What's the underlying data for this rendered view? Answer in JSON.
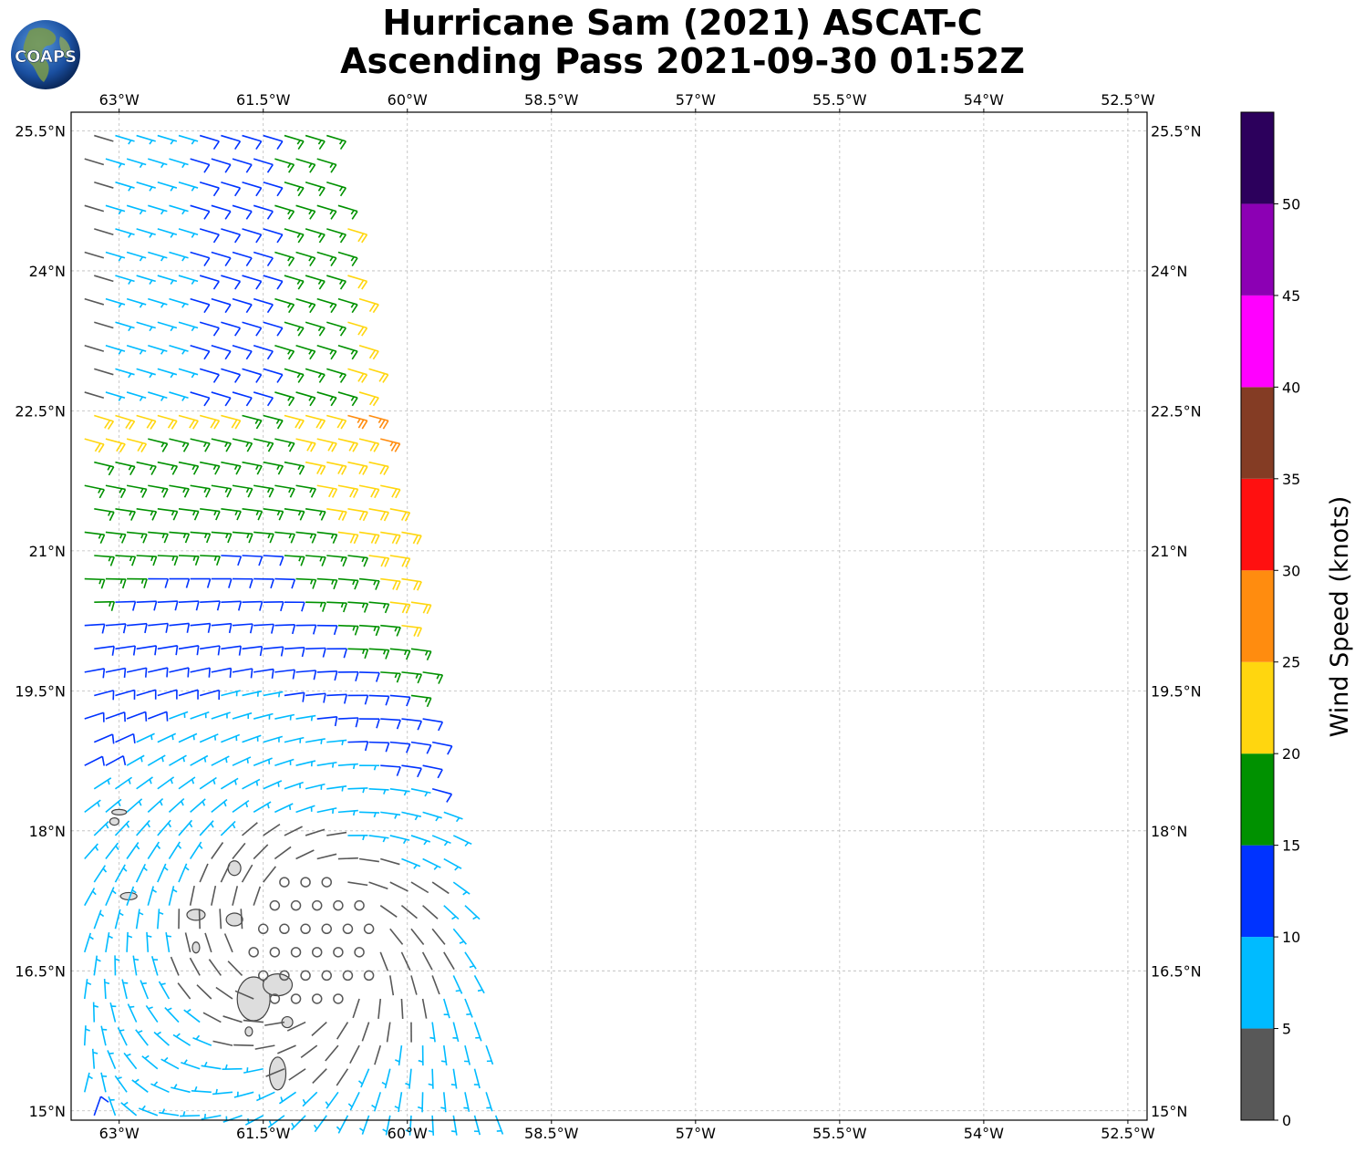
{
  "title": {
    "line1": "Hurricane Sam (2021) ASCAT-C",
    "line2": "Ascending Pass 2021-09-30 01:52Z"
  },
  "logo": {
    "text": "COAPS",
    "icon": "globe-icon"
  },
  "map": {
    "lon_range": [
      -63.5,
      -52.3
    ],
    "lat_range": [
      14.9,
      25.7
    ],
    "lon_ticks": [
      {
        "value": -63.0,
        "label": "63°W"
      },
      {
        "value": -61.5,
        "label": "61.5°W"
      },
      {
        "value": -60.0,
        "label": "60°W"
      },
      {
        "value": -58.5,
        "label": "58.5°W"
      },
      {
        "value": -57.0,
        "label": "57°W"
      },
      {
        "value": -55.5,
        "label": "55.5°W"
      },
      {
        "value": -54.0,
        "label": "54°W"
      },
      {
        "value": -52.5,
        "label": "52.5°W"
      }
    ],
    "lat_ticks": [
      {
        "value": 25.5,
        "label": "25.5°N"
      },
      {
        "value": 24.0,
        "label": "24°N"
      },
      {
        "value": 22.5,
        "label": "22.5°N"
      },
      {
        "value": 21.0,
        "label": "21°N"
      },
      {
        "value": 19.5,
        "label": "19.5°N"
      },
      {
        "value": 18.0,
        "label": "18°N"
      },
      {
        "value": 16.5,
        "label": "16.5°N"
      },
      {
        "value": 15.0,
        "label": "15°N"
      }
    ],
    "grid": true,
    "swath": {
      "lon_start_top": -63.7,
      "lon_end_top": -60.8,
      "lon_start_bottom": -63.7,
      "lon_end_bottom": -59.0,
      "lat_top": 25.6,
      "lat_bottom": 14.95
    },
    "storm_center": {
      "lon": -61.0,
      "lat": 16.8
    },
    "land_color": "#dddddd",
    "coast_color": "#444444"
  },
  "colorbar": {
    "label": "Wind Speed (knots)",
    "levels": [
      {
        "min": 0,
        "max": 5,
        "color": "#585858"
      },
      {
        "min": 5,
        "max": 10,
        "color": "#00bbff"
      },
      {
        "min": 10,
        "max": 15,
        "color": "#0033ff"
      },
      {
        "min": 15,
        "max": 20,
        "color": "#009100"
      },
      {
        "min": 20,
        "max": 25,
        "color": "#ffd60f"
      },
      {
        "min": 25,
        "max": 30,
        "color": "#ff8c0f"
      },
      {
        "min": 30,
        "max": 35,
        "color": "#ff1010"
      },
      {
        "min": 35,
        "max": 40,
        "color": "#843c24"
      },
      {
        "min": 40,
        "max": 45,
        "color": "#ff00ff"
      },
      {
        "min": 45,
        "max": 50,
        "color": "#8c00b4"
      },
      {
        "min": 50,
        "max": 55,
        "color": "#2c005c"
      }
    ],
    "tick_labels": [
      "0",
      "5",
      "10",
      "15",
      "20",
      "25",
      "30",
      "35",
      "40",
      "45",
      "50"
    ]
  }
}
